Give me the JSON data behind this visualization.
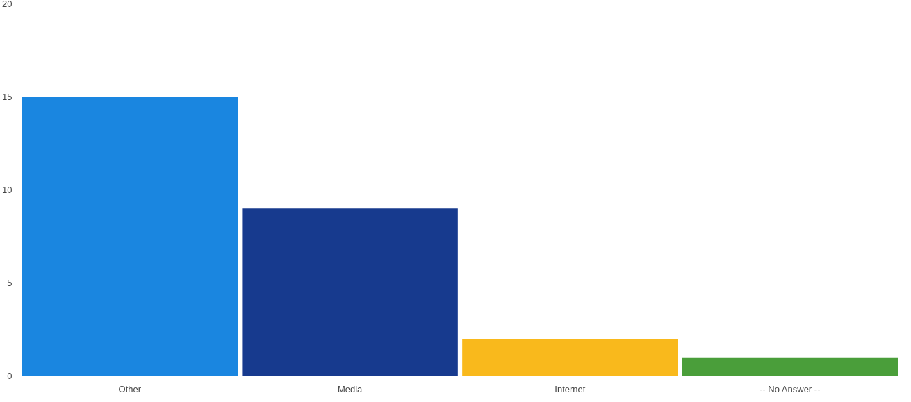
{
  "chart_data": {
    "type": "bar",
    "categories": [
      "Other",
      "Media",
      "Internet",
      "-- No Answer --"
    ],
    "values": [
      15,
      9,
      2,
      1
    ],
    "colors": [
      "#1a86e0",
      "#173a8e",
      "#f9b91c",
      "#4a9e3a"
    ],
    "ylim": [
      0,
      20
    ],
    "yticks": [
      0,
      5,
      10,
      15,
      20
    ],
    "grid": false
  }
}
